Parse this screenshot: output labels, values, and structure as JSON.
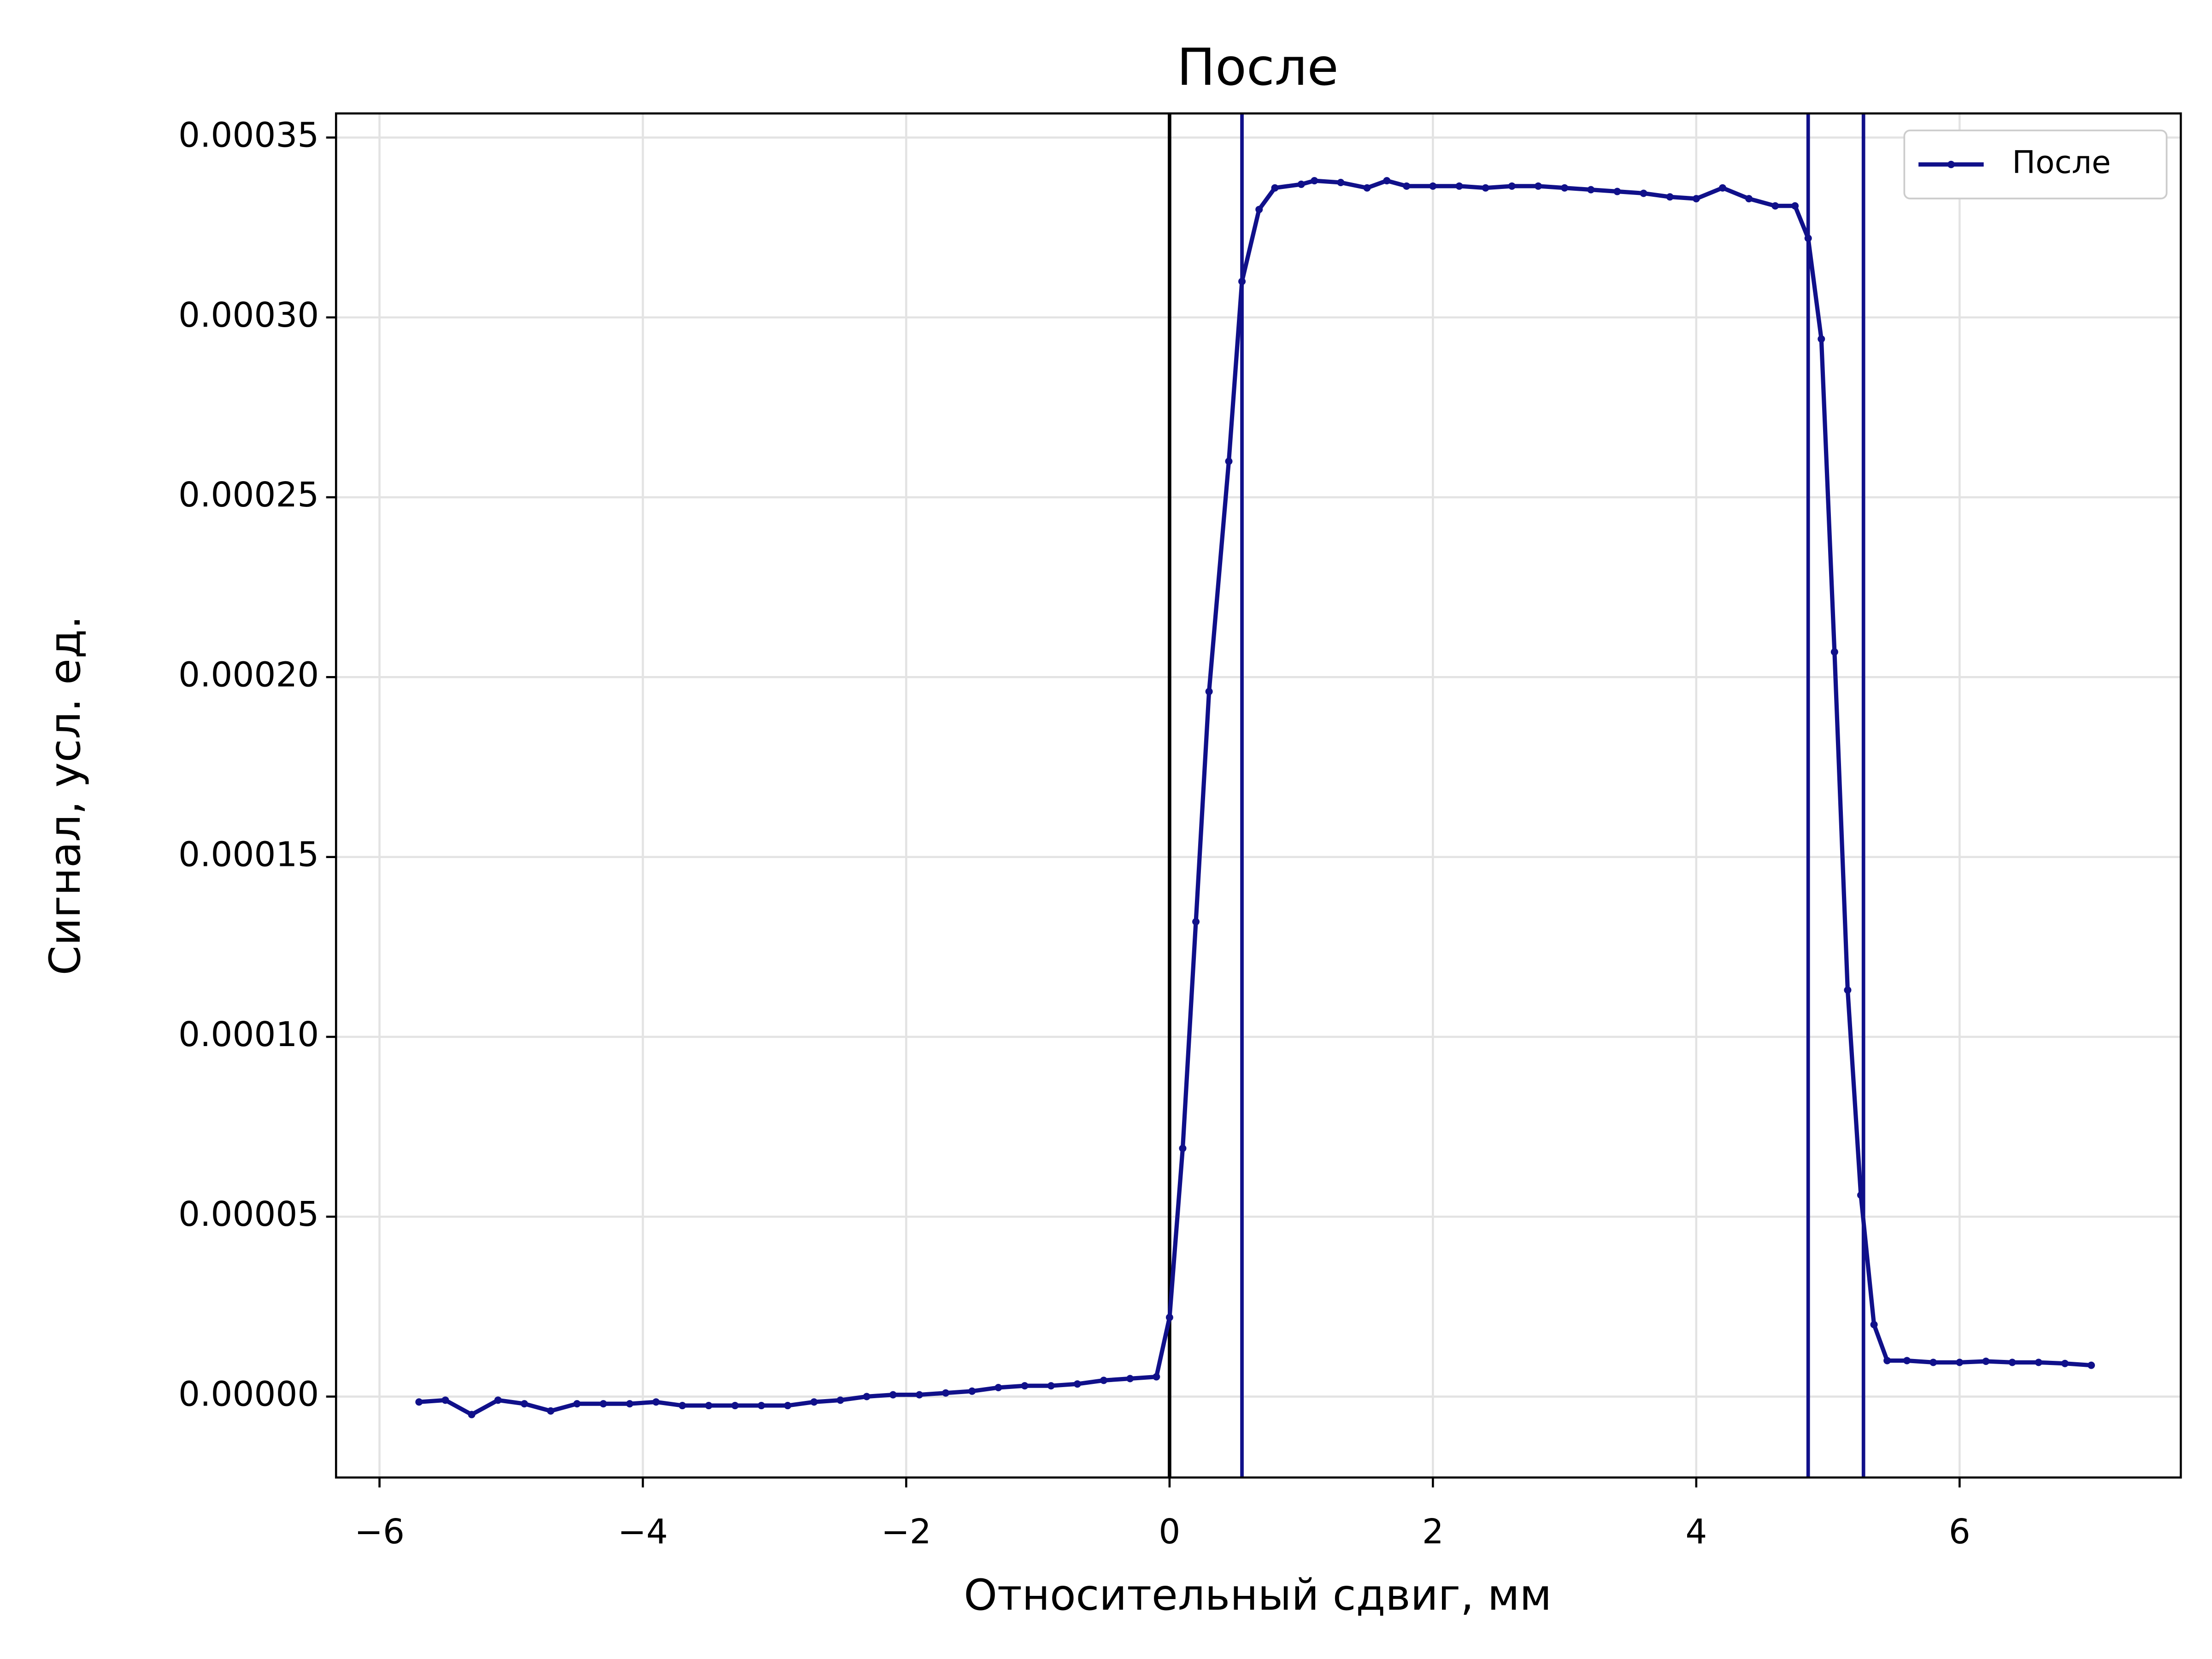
{
  "chart_data": {
    "type": "line",
    "title": "После",
    "xlabel": "Относительный сдвиг, мм",
    "ylabel": "Сигнал, усл. ед.",
    "x": [
      -5.7,
      -5.5,
      -5.3,
      -5.1,
      -4.9,
      -4.7,
      -4.5,
      -4.3,
      -4.1,
      -3.9,
      -3.7,
      -3.5,
      -3.3,
      -3.1,
      -2.9,
      -2.7,
      -2.5,
      -2.3,
      -2.1,
      -1.9,
      -1.7,
      -1.5,
      -1.3,
      -1.1,
      -0.9,
      -0.7,
      -0.5,
      -0.3,
      -0.1,
      0,
      0.1,
      0.2,
      0.3,
      0.45,
      0.55,
      0.68,
      0.8,
      1.0,
      1.1,
      1.3,
      1.5,
      1.65,
      1.8,
      2.0,
      2.2,
      2.4,
      2.6,
      2.8,
      3.0,
      3.2,
      3.4,
      3.6,
      3.8,
      4.0,
      4.2,
      4.4,
      4.6,
      4.75,
      4.85,
      4.95,
      5.05,
      5.15,
      5.25,
      5.35,
      5.45,
      5.6,
      5.8,
      6.0,
      6.2,
      6.4,
      6.6,
      6.8,
      7.0
    ],
    "series": [
      {
        "name": "После",
        "color": "#10108a",
        "values": [
          -1.5e-06,
          -1e-06,
          -5e-06,
          -1e-06,
          -2e-06,
          -4e-06,
          -2e-06,
          -2e-06,
          -2e-06,
          -1.5e-06,
          -2.5e-06,
          -2.5e-06,
          -2.5e-06,
          -2.5e-06,
          -2.5e-06,
          -1.5e-06,
          -1e-06,
          0,
          5e-07,
          5e-07,
          1e-06,
          1.5e-06,
          2.5e-06,
          3e-06,
          3e-06,
          3.5e-06,
          4.5e-06,
          5e-06,
          5.5e-06,
          2.2e-05,
          6.9e-05,
          0.000132,
          0.000196,
          0.00026,
          0.00031,
          0.00033,
          0.000336,
          0.000337,
          0.000338,
          0.0003375,
          0.000336,
          0.000338,
          0.0003365,
          0.0003365,
          0.0003365,
          0.000336,
          0.0003365,
          0.0003365,
          0.000336,
          0.0003355,
          0.000335,
          0.0003345,
          0.0003335,
          0.000333,
          0.000336,
          0.000333,
          0.000331,
          0.000331,
          0.000322,
          0.000294,
          0.000207,
          0.000113,
          5.6e-05,
          2e-05,
          1e-05,
          1e-05,
          9.5e-06,
          9.5e-06,
          9.8e-06,
          9.5e-06,
          9.5e-06,
          9.2e-06,
          8.7e-06
        ]
      }
    ],
    "vlines": [
      {
        "x": 0,
        "color": "#000000"
      },
      {
        "x": 0.55,
        "color": "#10108a"
      },
      {
        "x": 4.85,
        "color": "#10108a"
      },
      {
        "x": 5.27,
        "color": "#10108a"
      }
    ],
    "xlim": [
      -6.33,
      7.68
    ],
    "ylim": [
      -2.25e-05,
      0.0003567
    ],
    "xticks": [
      {
        "value": -6,
        "label": "−6"
      },
      {
        "value": -4,
        "label": "−4"
      },
      {
        "value": -2,
        "label": "−2"
      },
      0,
      2,
      4,
      6
    ],
    "yticks": [
      {
        "value": 0,
        "label": "0.00000"
      },
      5e-05,
      {
        "value": 0.0001,
        "label": "0.00010"
      },
      0.00015,
      {
        "value": 0.0002,
        "label": "0.00020"
      },
      0.00025,
      {
        "value": 0.0003,
        "label": "0.00030"
      },
      0.00035
    ],
    "grid": true,
    "legend": "upper right"
  }
}
